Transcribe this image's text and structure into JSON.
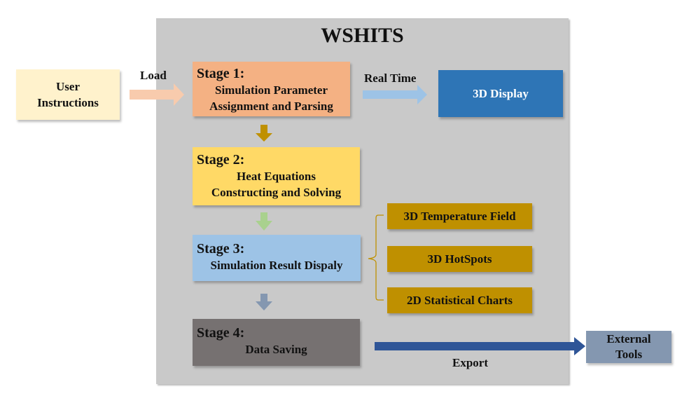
{
  "title": "WSHITS",
  "user_instructions": {
    "label": "User Instructions",
    "color": "#fff2cc"
  },
  "load_label": "Load",
  "realtime_label": "Real Time",
  "export_label": "Export",
  "display_3d": {
    "label": "3D Display",
    "color": "#2e75b6"
  },
  "external_tools": {
    "label": "External Tools",
    "color": "#8497b0"
  },
  "stages": [
    {
      "heading": "Stage 1:",
      "line1": "Simulation Parameter",
      "line2": "Assignment and Parsing",
      "color": "#f4b183"
    },
    {
      "heading": "Stage 2:",
      "line1": "Heat Equations",
      "line2": "Constructing and Solving",
      "color": "#ffd966"
    },
    {
      "heading": "Stage 3:",
      "line1": "Simulation Result Dispaly",
      "color": "#9dc3e6"
    },
    {
      "heading": "Stage 4:",
      "line1": "Data Saving",
      "color": "#767171"
    }
  ],
  "outputs": [
    {
      "label": "3D Temperature Field"
    },
    {
      "label": "3D HotSpots"
    },
    {
      "label": "2D Statistical Charts"
    }
  ],
  "output_color": "#bf9000"
}
